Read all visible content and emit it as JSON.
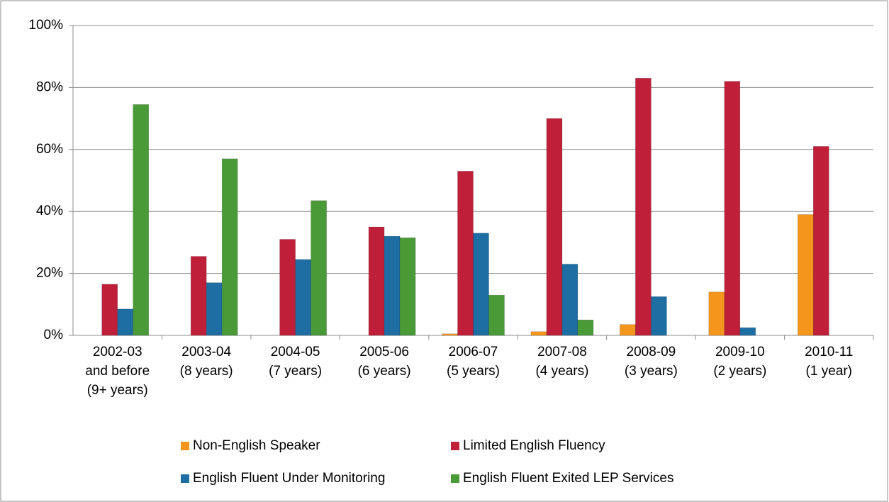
{
  "chart_data": {
    "type": "bar",
    "categories": [
      [
        "2002-03",
        "and before",
        "(9+ years)"
      ],
      [
        "2003-04",
        "(8 years)"
      ],
      [
        "2004-05",
        "(7 years)"
      ],
      [
        "2005-06",
        "(6 years)"
      ],
      [
        "2006-07",
        "(5 years)"
      ],
      [
        "2007-08",
        "(4 years)"
      ],
      [
        "2008-09",
        "(3 years)"
      ],
      [
        "2009-10",
        "(2 years)"
      ],
      [
        "2010-11",
        "(1 year)"
      ]
    ],
    "series": [
      {
        "name": "Non-English Speaker",
        "color": "#f5961c",
        "values": [
          0,
          0,
          0,
          0,
          0.5,
          1.2,
          3.5,
          14,
          39
        ]
      },
      {
        "name": "Limited English Fluency",
        "color": "#c01f3a",
        "values": [
          16.5,
          25.5,
          31,
          35,
          53,
          70,
          83,
          82,
          61
        ]
      },
      {
        "name": "English Fluent Under Monitoring",
        "color": "#1f6ea3",
        "values": [
          8.5,
          17,
          24.5,
          32,
          33,
          23,
          12.5,
          2.5,
          0
        ]
      },
      {
        "name": "English Fluent Exited LEP Services",
        "color": "#4a9a38",
        "values": [
          74.5,
          57,
          43.5,
          31.5,
          13,
          5,
          0,
          0,
          0
        ]
      }
    ],
    "ylim": [
      0,
      100
    ],
    "yticks": [
      {
        "value": 0,
        "label": "0%"
      },
      {
        "value": 20,
        "label": "20%"
      },
      {
        "value": 40,
        "label": "40%"
      },
      {
        "value": 60,
        "label": "60%"
      },
      {
        "value": 80,
        "label": "80%"
      },
      {
        "value": 100,
        "label": "100%"
      }
    ],
    "grid": true,
    "legend": "bottom"
  }
}
